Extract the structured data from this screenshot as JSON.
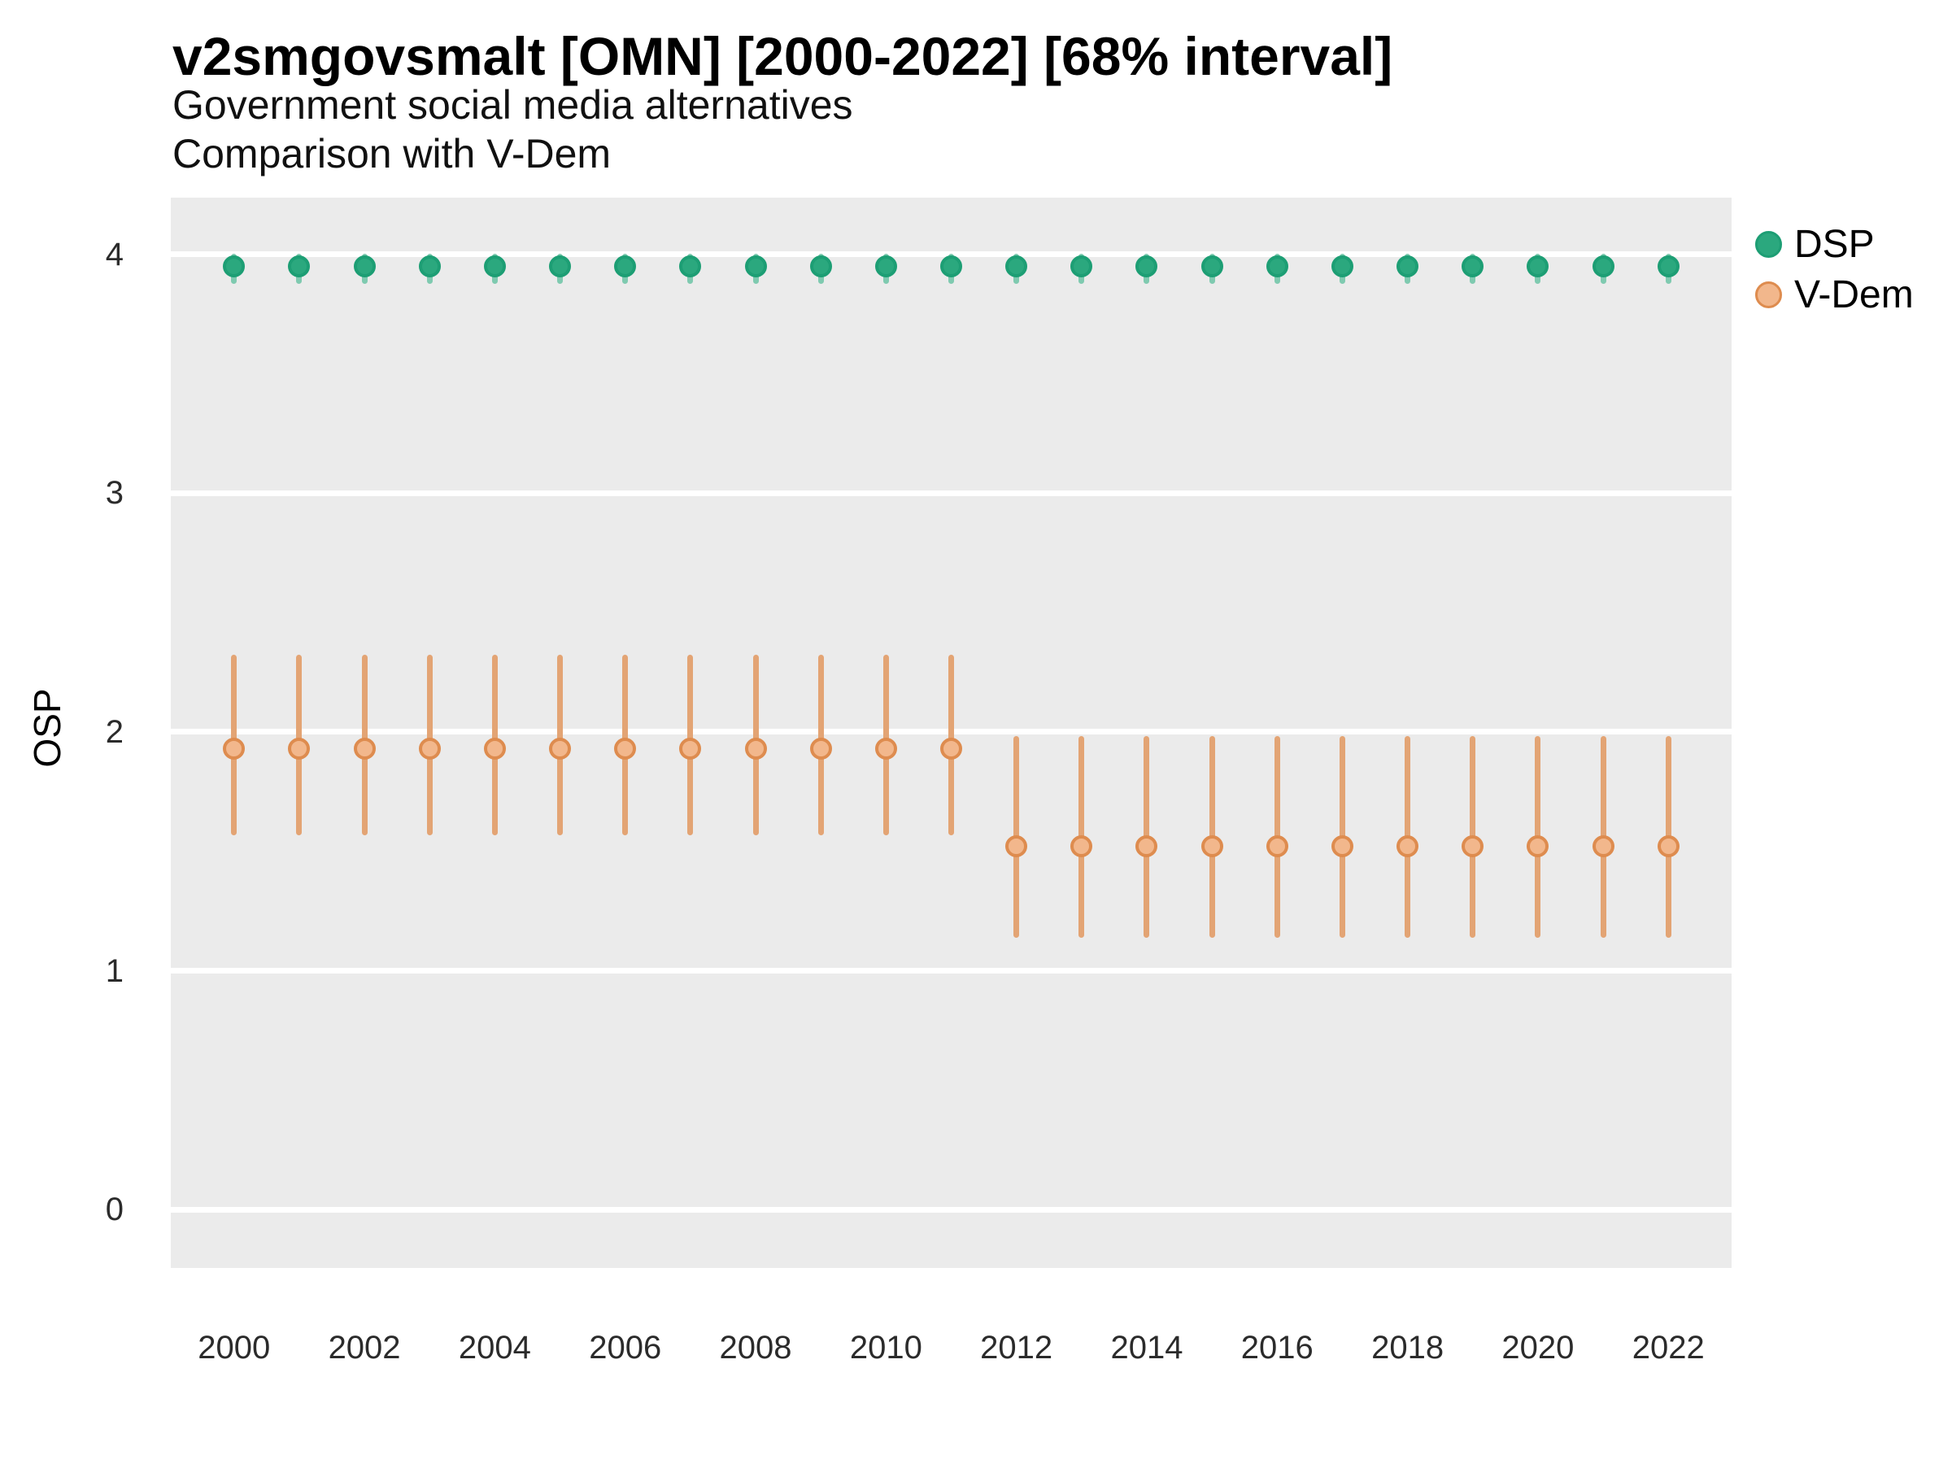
{
  "title": "v2smgovsmalt [OMN] [2000-2022] [68% interval]",
  "subtitle_line1": "Government social media alternatives",
  "subtitle_line2": "Comparison with V-Dem",
  "y_axis": {
    "label": "OSP",
    "ticks": [
      0,
      1,
      2,
      3,
      4
    ]
  },
  "x_axis": {
    "ticks": [
      2000,
      2002,
      2004,
      2006,
      2008,
      2010,
      2012,
      2014,
      2016,
      2018,
      2020,
      2022
    ]
  },
  "legend": {
    "items": [
      {
        "label": "DSP",
        "fill": "#2BA87E",
        "stroke": "#1D9E74"
      },
      {
        "label": "V-Dem",
        "fill": "#F2B78C",
        "stroke": "#DE8C4F"
      }
    ]
  },
  "colors": {
    "panel_background": "#EBEBEB",
    "gridline": "#FFFFFF",
    "title_text": "#000000",
    "tick_text": "#2B2B2B",
    "dsp_green": "#2BA87E",
    "vdem_orange": "#DE8C4F"
  },
  "chart_data": {
    "type": "scatter",
    "subtype": "pointrange",
    "interval_note": "68% interval",
    "x": [
      2000,
      2001,
      2002,
      2003,
      2004,
      2005,
      2006,
      2007,
      2008,
      2009,
      2010,
      2011,
      2012,
      2013,
      2014,
      2015,
      2016,
      2017,
      2018,
      2019,
      2020,
      2021,
      2022
    ],
    "series": [
      {
        "name": "DSP",
        "estimate": [
          3.95,
          3.95,
          3.95,
          3.95,
          3.95,
          3.95,
          3.95,
          3.95,
          3.95,
          3.95,
          3.95,
          3.95,
          3.95,
          3.95,
          3.95,
          3.95,
          3.95,
          3.95,
          3.95,
          3.95,
          3.95,
          3.95,
          3.95
        ],
        "low": [
          3.89,
          3.89,
          3.89,
          3.89,
          3.89,
          3.89,
          3.89,
          3.89,
          3.89,
          3.89,
          3.89,
          3.89,
          3.89,
          3.89,
          3.89,
          3.89,
          3.89,
          3.89,
          3.89,
          3.89,
          3.89,
          3.89,
          3.89
        ],
        "high": [
          3.99,
          3.99,
          3.99,
          3.99,
          3.99,
          3.99,
          3.99,
          3.99,
          3.99,
          3.99,
          3.99,
          3.99,
          3.99,
          3.99,
          3.99,
          3.99,
          3.99,
          3.99,
          3.99,
          3.99,
          3.99,
          3.99,
          3.99
        ],
        "point_fill": "#2BA87E",
        "point_stroke": "#1D9E74",
        "bar_color": "#7FCAB0"
      },
      {
        "name": "V-Dem",
        "estimate": [
          1.93,
          1.93,
          1.93,
          1.93,
          1.93,
          1.93,
          1.93,
          1.93,
          1.93,
          1.93,
          1.93,
          1.93,
          1.52,
          1.52,
          1.52,
          1.52,
          1.52,
          1.52,
          1.52,
          1.52,
          1.52,
          1.52,
          1.52
        ],
        "low": [
          1.58,
          1.58,
          1.58,
          1.58,
          1.58,
          1.58,
          1.58,
          1.58,
          1.58,
          1.58,
          1.58,
          1.58,
          1.15,
          1.15,
          1.15,
          1.15,
          1.15,
          1.15,
          1.15,
          1.15,
          1.15,
          1.15,
          1.15
        ],
        "high": [
          2.31,
          2.31,
          2.31,
          2.31,
          2.31,
          2.31,
          2.31,
          2.31,
          2.31,
          2.31,
          2.31,
          2.31,
          1.97,
          1.97,
          1.97,
          1.97,
          1.97,
          1.97,
          1.97,
          1.97,
          1.97,
          1.97,
          1.97
        ],
        "point_fill": "#F2B78C",
        "point_stroke": "#DE8C4F",
        "bar_color": "#E3A474"
      }
    ],
    "xlim": [
      1999.03,
      2022.97
    ],
    "ylim": [
      -0.245,
      4.238
    ],
    "grid": "horizontal-major-only",
    "legend_position": "right",
    "title": "v2smgovsmalt [OMN] [2000-2022] [68% interval]",
    "xlabel": "",
    "ylabel": "OSP"
  }
}
